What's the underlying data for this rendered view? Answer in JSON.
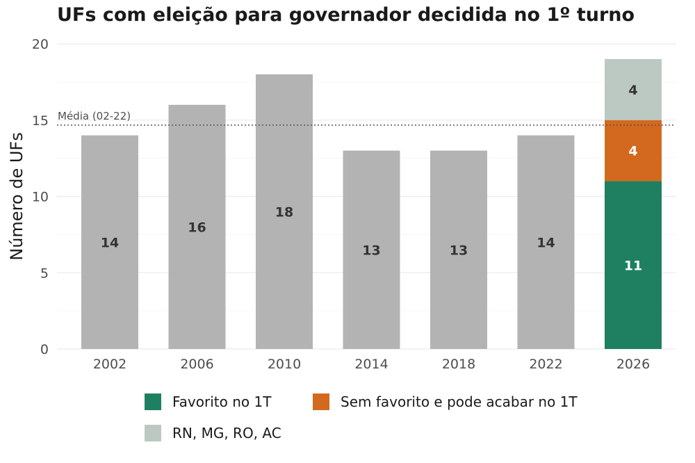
{
  "chart_data": {
    "type": "bar",
    "title": "UFs com eleição para governador decidida no 1º turno",
    "ylabel": "Número de UFs",
    "xlabel": "",
    "ylim": [
      0,
      20
    ],
    "yticks": [
      0,
      5,
      10,
      15,
      20
    ],
    "grid": true,
    "categories": [
      "2002",
      "2006",
      "2010",
      "2014",
      "2018",
      "2022",
      "2026"
    ],
    "values": [
      14,
      16,
      18,
      13,
      13,
      14,
      null
    ],
    "bar_color": "#b3b3b3",
    "stacked_bar": {
      "category": "2026",
      "segments": [
        {
          "name": "Favorito no 1T",
          "value": 11,
          "color": "#1e8060",
          "label_color": "#ffffff"
        },
        {
          "name": "Sem favorito e pode acabar no 1T",
          "value": 4,
          "color": "#d2691e",
          "label_color": "#ffffff"
        },
        {
          "name": "RN, MG, RO, AC",
          "value": 4,
          "color": "#bcc9c2",
          "label_color": "#333333"
        }
      ]
    },
    "reference_line": {
      "label": "Média (02-22)",
      "value": 14.67,
      "style": "dotted"
    },
    "legend": {
      "position": "bottom",
      "entries": [
        {
          "name": "Favorito no 1T",
          "color": "#1e8060"
        },
        {
          "name": "Sem favorito e pode acabar no 1T",
          "color": "#d2691e"
        },
        {
          "name": "RN, MG, RO, AC",
          "color": "#bcc9c2"
        }
      ]
    }
  }
}
